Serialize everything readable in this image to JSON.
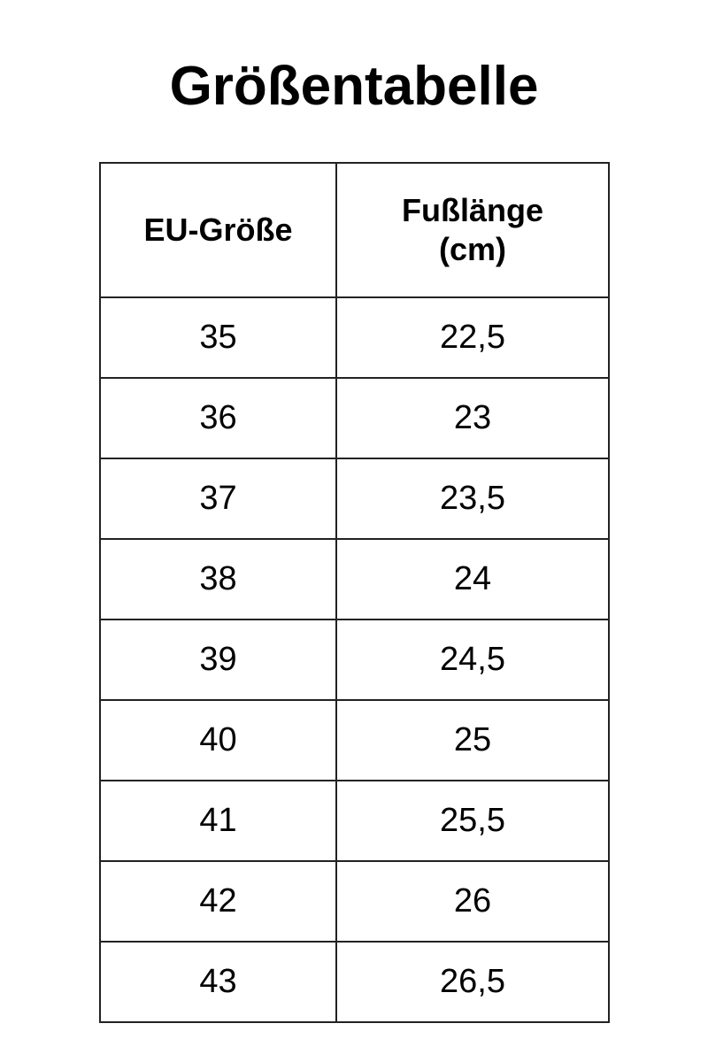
{
  "title": "Größentabelle",
  "headers": [
    "EU-Größe",
    "Fußlänge\n(cm)"
  ],
  "header_lines": [
    "EU-Größe",
    "Fußlänge",
    "(cm)"
  ],
  "rows": [
    [
      "35",
      "22,5"
    ],
    [
      "36",
      "23"
    ],
    [
      "37",
      "23,5"
    ],
    [
      "38",
      "24"
    ],
    [
      "39",
      "24,5"
    ],
    [
      "40",
      "25"
    ],
    [
      "41",
      "25,5"
    ],
    [
      "42",
      "26"
    ],
    [
      "43",
      "26,5"
    ]
  ]
}
